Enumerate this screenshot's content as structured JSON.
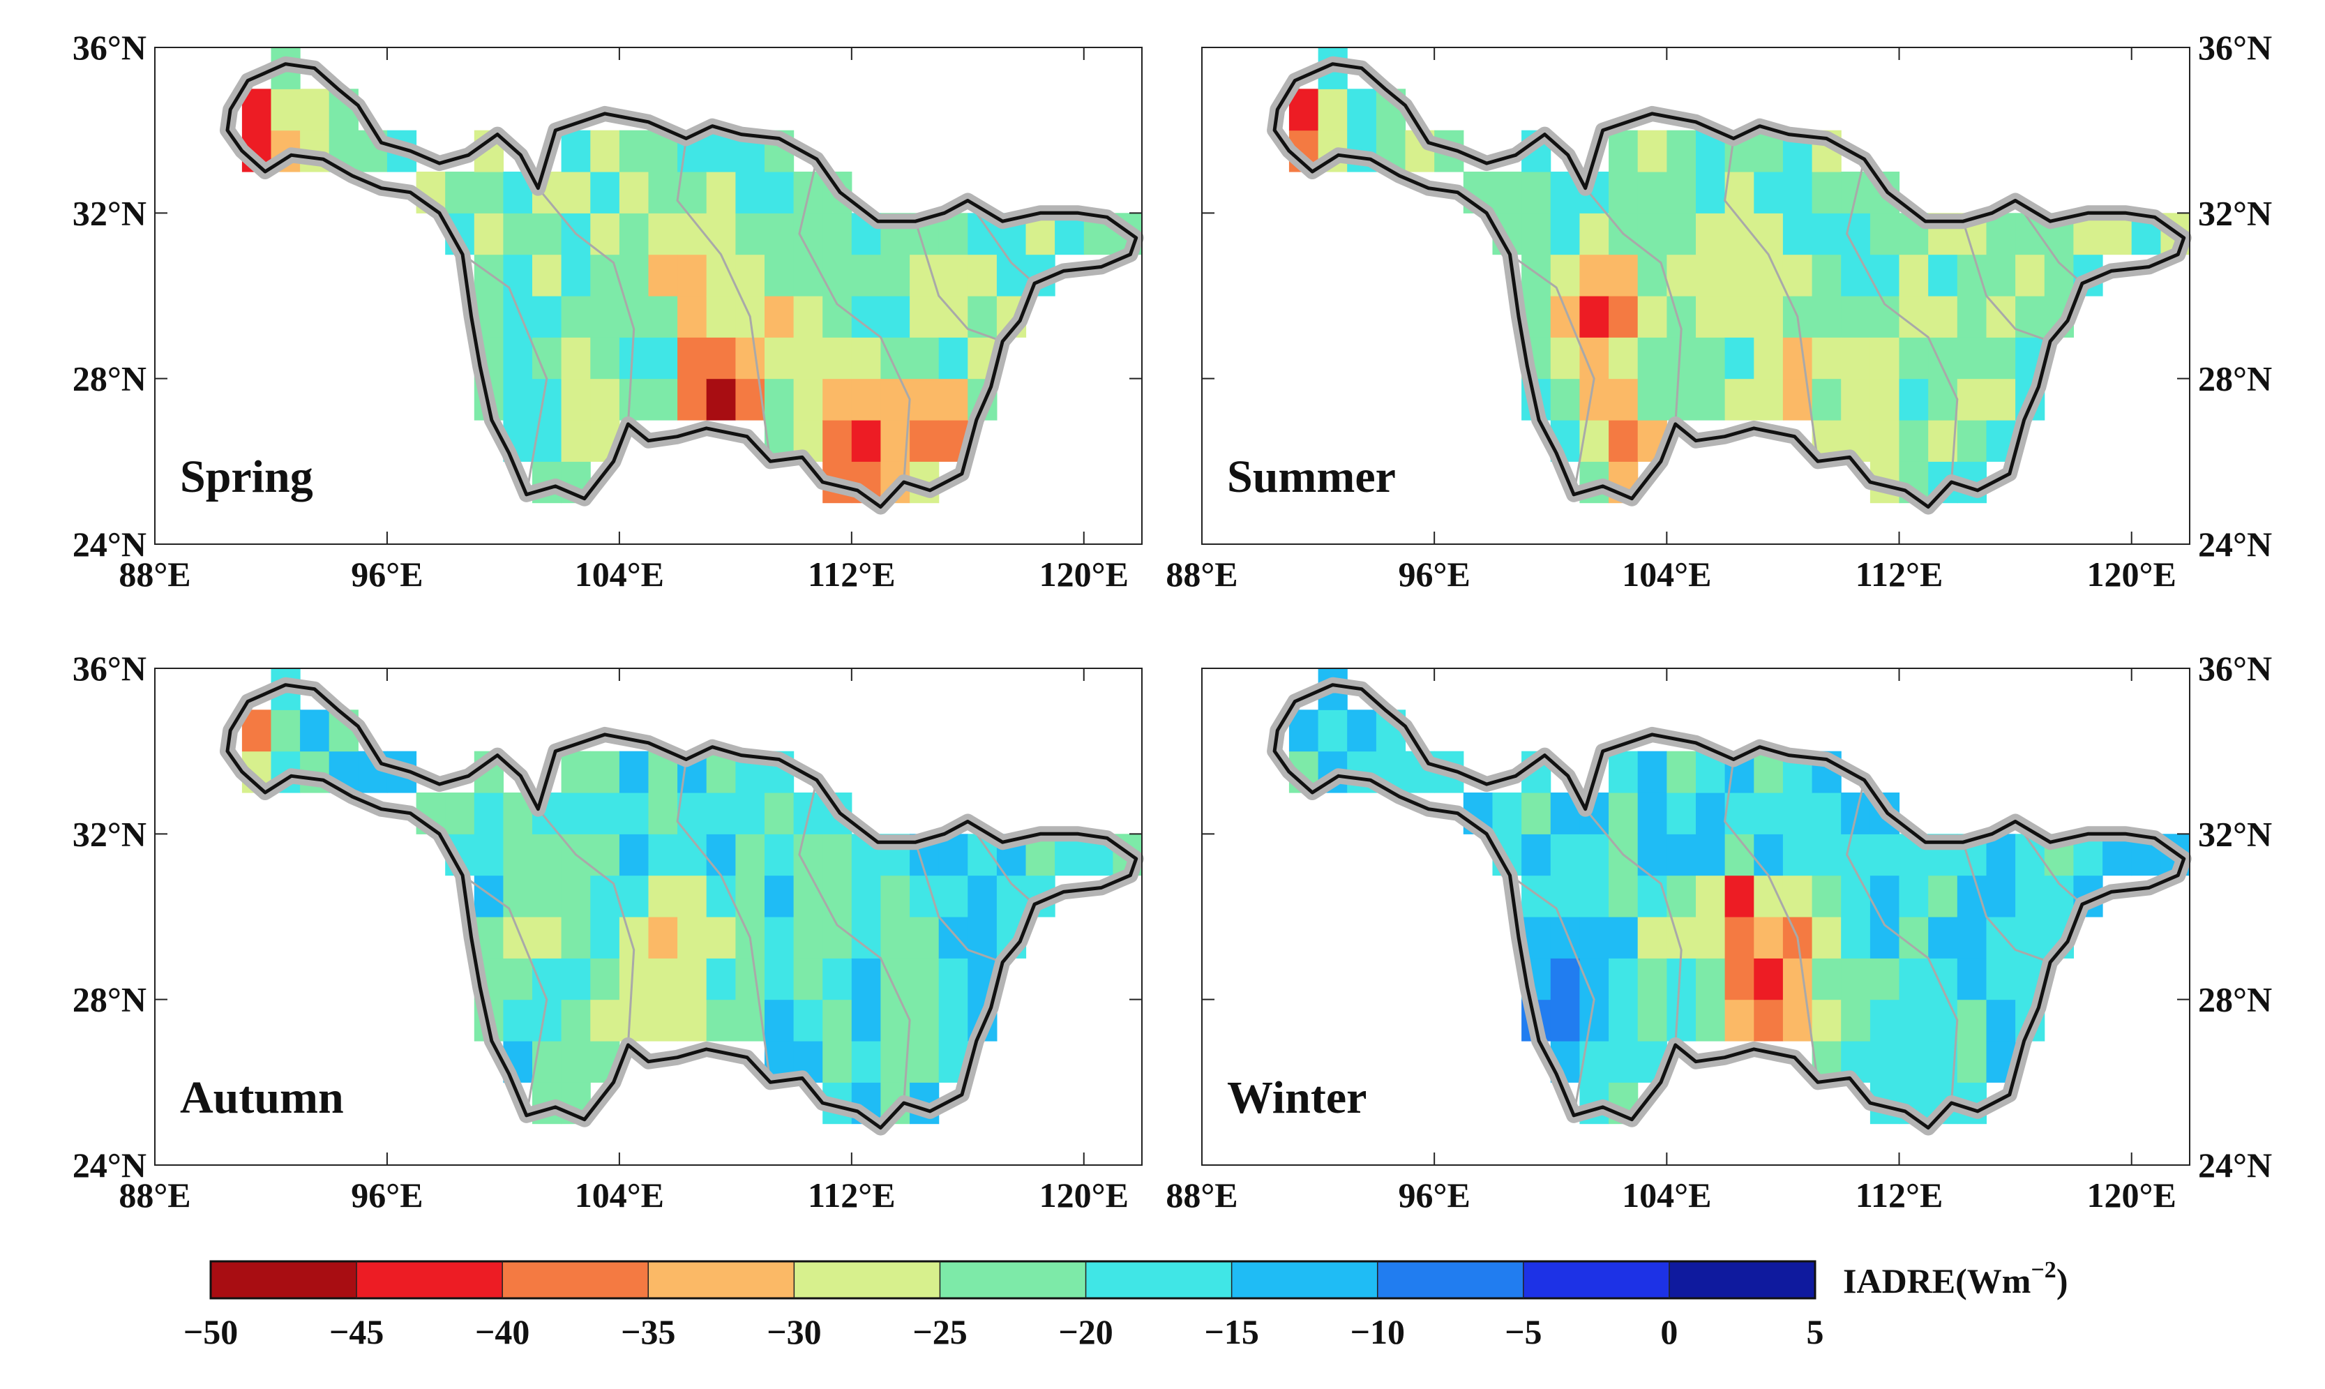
{
  "chart_data": {
    "type": "heatmap",
    "description_variable": "IADRE",
    "panels": [
      {
        "title": "Spring",
        "label_position": "bottom-left"
      },
      {
        "title": "Summer",
        "label_position": "bottom-left"
      },
      {
        "title": "Autumn",
        "label_position": "bottom-left"
      },
      {
        "title": "Winter",
        "label_position": "bottom-left"
      }
    ],
    "lon_range": [
      88,
      122
    ],
    "lat_range": [
      24,
      36
    ],
    "lon_ticks": [
      "88°E",
      "96°E",
      "104°E",
      "112°E",
      "120°E"
    ],
    "lat_ticks": [
      "24°N",
      "28°N",
      "32°N",
      "36°N"
    ],
    "colorbar": {
      "label": "IADRE(Wm",
      "label_superscript": "−2",
      "label_suffix": ")",
      "ticks": [
        "−50",
        "−45",
        "−40",
        "−35",
        "−30",
        "−25",
        "−20",
        "−15",
        "−10",
        "−5",
        "0",
        "5"
      ],
      "colors": [
        "#a80d12",
        "#ed1c24",
        "#f47a42",
        "#fbb966",
        "#d7f08d",
        "#7deaa8",
        "#40e6e6",
        "#1fbcf5",
        "#217df0",
        "#1d32e6",
        "#0f1a9e"
      ]
    }
  }
}
